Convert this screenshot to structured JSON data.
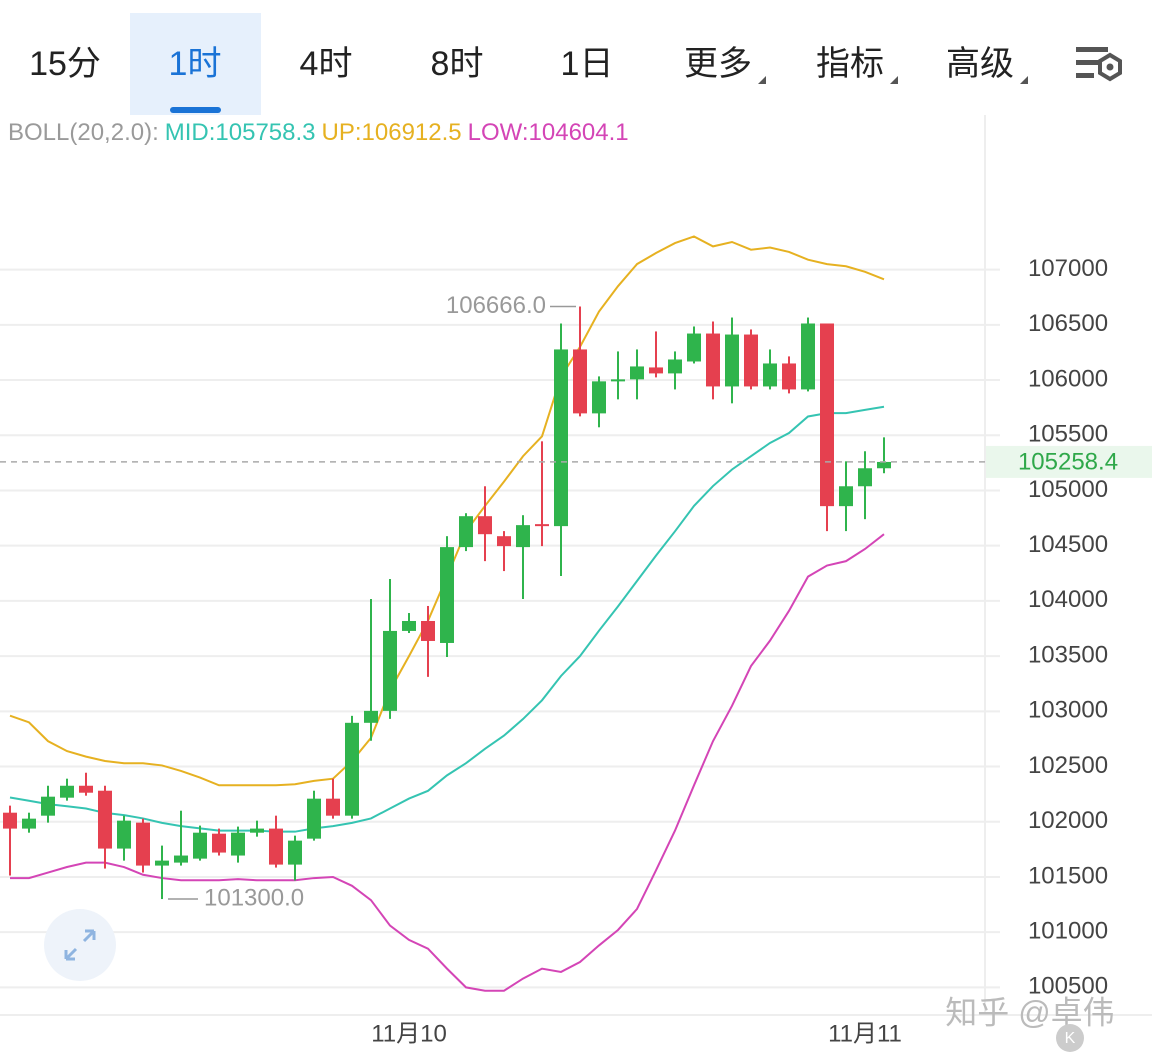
{
  "tabs": {
    "items": [
      "15分",
      "1时",
      "4时",
      "8时",
      "1日",
      "更多",
      "指标",
      "高级"
    ],
    "active": 1
  },
  "watermark": "知乎 @卓伟",
  "chart_data": {
    "type": "candlestick",
    "indicator_label": "BOLL(20,2.0):",
    "categories": [
      null,
      null,
      null,
      null,
      null,
      null,
      null,
      null,
      null,
      null,
      null,
      null,
      null,
      null,
      null,
      null,
      null,
      null,
      null,
      null,
      null,
      "11月10",
      null,
      null,
      null,
      null,
      null,
      null,
      null,
      null,
      null,
      null,
      null,
      null,
      null,
      null,
      null,
      null,
      null,
      null,
      null,
      null,
      null,
      null,
      null,
      "11月11",
      null
    ],
    "open": [
      102082,
      101938,
      102055,
      102218,
      102326,
      102281,
      101757,
      101992,
      101603,
      101630,
      101666,
      101892,
      101694,
      101901,
      101938,
      101612,
      101847,
      102209,
      102055,
      102896,
      103004,
      103728,
      103818,
      103619,
      104487,
      104767,
      104586,
      104487,
      104695,
      104677,
      106277,
      105698,
      105988,
      106006,
      106114,
      106060,
      106168,
      106421,
      105942,
      106412,
      105942,
      106150,
      105915,
      106512,
      104858,
      105038,
      105201
    ],
    "high": [
      102146,
      102082,
      102326,
      102390,
      102444,
      102326,
      102055,
      102028,
      101784,
      102100,
      101965,
      101938,
      101956,
      102010,
      102055,
      101874,
      102281,
      102390,
      102959,
      104017,
      104198,
      103890,
      103954,
      104586,
      104794,
      105038,
      104632,
      104776,
      105445,
      106512,
      106666,
      106033,
      106259,
      106277,
      106440,
      106259,
      106485,
      106530,
      106566,
      106458,
      106277,
      106214,
      106566,
      106512,
      105264,
      105355,
      105481
    ],
    "low": [
      101513,
      101901,
      101992,
      102191,
      102236,
      101576,
      101648,
      101540,
      101300,
      101603,
      101648,
      101694,
      101630,
      101865,
      101585,
      101468,
      101829,
      102028,
      102028,
      102733,
      102932,
      103709,
      103312,
      103492,
      104451,
      104360,
      104270,
      104017,
      104496,
      104225,
      105671,
      105572,
      105825,
      105825,
      106024,
      105915,
      106150,
      105825,
      105789,
      105915,
      105915,
      105879,
      105897,
      104632,
      104632,
      104740,
      105156
    ],
    "close": [
      101938,
      102028,
      102227,
      102326,
      102263,
      101757,
      102010,
      101603,
      101648,
      101694,
      101901,
      101721,
      101901,
      101938,
      101612,
      101829,
      102209,
      102055,
      102896,
      103004,
      103728,
      103818,
      103637,
      104487,
      104767,
      104604,
      104496,
      104686,
      104677,
      106277,
      105698,
      105988,
      106006,
      106123,
      106060,
      106186,
      106421,
      105942,
      106412,
      105942,
      106150,
      105915,
      106512,
      104858,
      105038,
      105201,
      105258.4
    ],
    "up_color": "#2fb44c",
    "down_color": "#e5404f",
    "series": [
      {
        "name": "MID:105758.3",
        "color": "#35c4b2",
        "values": [
          102220,
          102190,
          102160,
          102140,
          102120,
          102080,
          102060,
          102030,
          101990,
          101960,
          101940,
          101920,
          101920,
          101920,
          101910,
          101910,
          101940,
          101960,
          101990,
          102030,
          102120,
          102210,
          102280,
          102420,
          102530,
          102660,
          102780,
          102930,
          103100,
          103320,
          103500,
          103730,
          103950,
          104180,
          104410,
          104630,
          104860,
          105040,
          105190,
          105310,
          105430,
          105520,
          105670,
          105700,
          105700,
          105730,
          105758.3
        ]
      },
      {
        "name": "UP:106912.5",
        "color": "#e6b121",
        "values": [
          102960,
          102900,
          102730,
          102640,
          102590,
          102550,
          102530,
          102530,
          102510,
          102460,
          102400,
          102330,
          102330,
          102330,
          102330,
          102340,
          102370,
          102390,
          102550,
          102760,
          103190,
          103500,
          103820,
          104220,
          104630,
          104860,
          105080,
          105310,
          105490,
          106030,
          106300,
          106620,
          106850,
          107050,
          107150,
          107240,
          107300,
          107210,
          107250,
          107180,
          107200,
          107160,
          107090,
          107050,
          107030,
          106980,
          106912.5
        ]
      },
      {
        "name": "LOW:104604.1",
        "color": "#d445b6",
        "values": [
          101490,
          101490,
          101540,
          101590,
          101630,
          101630,
          101590,
          101520,
          101490,
          101470,
          101470,
          101470,
          101480,
          101470,
          101470,
          101470,
          101490,
          101500,
          101420,
          101290,
          101060,
          100930,
          100850,
          100670,
          100500,
          100470,
          100470,
          100580,
          100670,
          100640,
          100730,
          100880,
          101020,
          101210,
          101560,
          101920,
          102330,
          102730,
          103050,
          103410,
          103640,
          103910,
          104220,
          104320,
          104360,
          104470,
          104604.1
        ]
      }
    ],
    "high_label": "106666.0",
    "high_index": 30,
    "low_label": "101300.0",
    "low_index": 8,
    "last_price": 105258.4,
    "ylim": [
      100250,
      108400
    ],
    "yticks": [
      100500,
      101000,
      101500,
      102000,
      102500,
      103000,
      103500,
      104000,
      104500,
      105000,
      105500,
      106000,
      106500,
      107000
    ],
    "grid": true
  }
}
